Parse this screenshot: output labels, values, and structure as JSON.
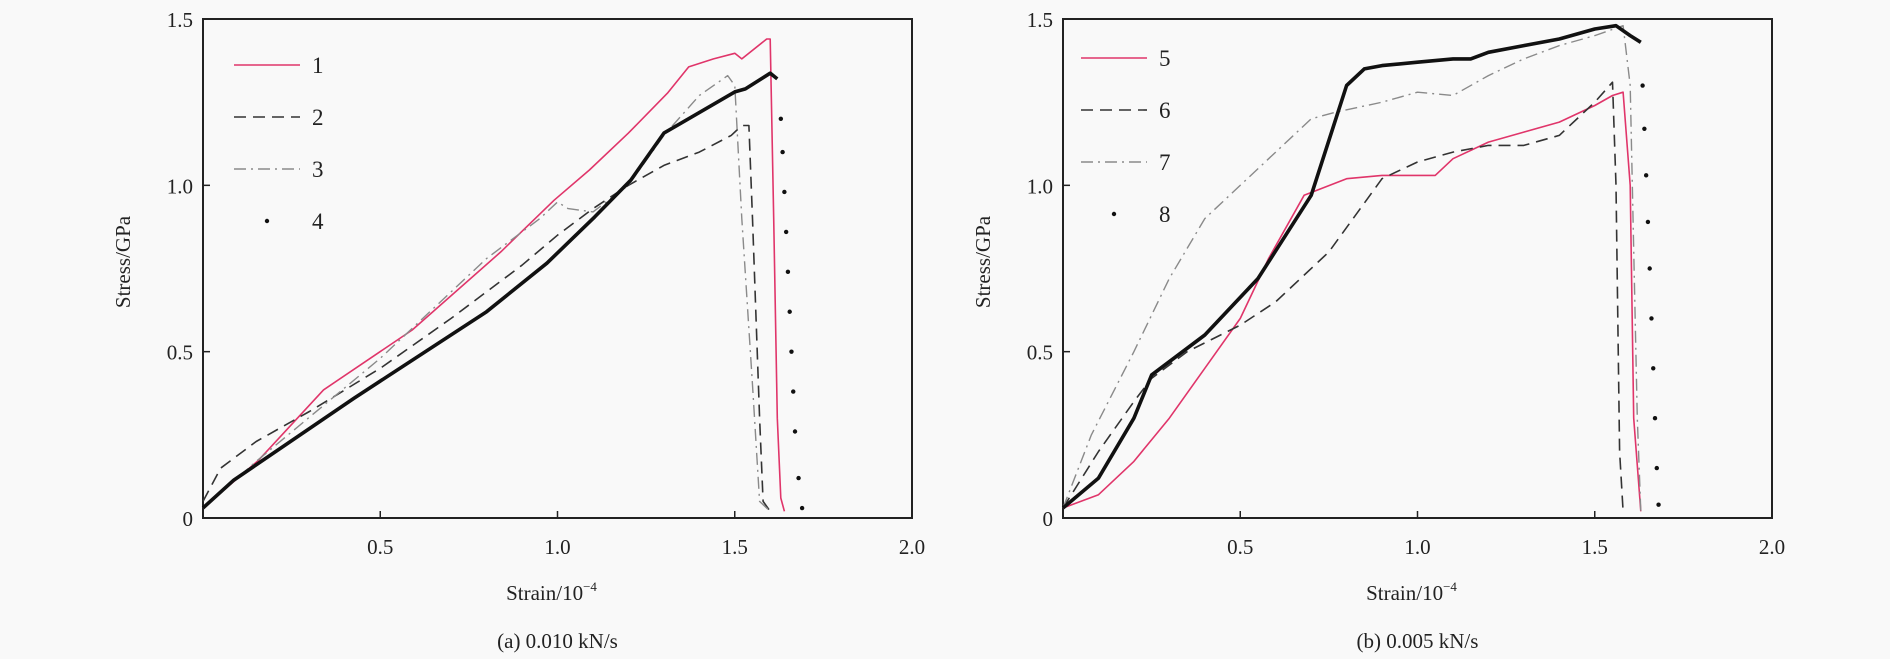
{
  "colors": {
    "pink": "#e0356a",
    "dark": "#333333",
    "gray": "#8a8a8a",
    "black": "#111111",
    "frame": "#222222"
  },
  "chart_data": [
    {
      "type": "line",
      "caption": "(a) 0.010 kN/s",
      "xlabel": "Strain/10",
      "xlabel_sup": "−4",
      "ylabel": "Stress/GPa",
      "xlim": [
        0,
        2.0
      ],
      "ylim": [
        0,
        1.5
      ],
      "xticks": [
        "0.5",
        "1.0",
        "1.5",
        "2.0"
      ],
      "xtick_values": [
        0.5,
        1.0,
        1.5,
        2.0
      ],
      "yticks": [
        "0",
        "0.5",
        "1.0",
        "1.5"
      ],
      "ytick_values": [
        0,
        0.5,
        1.0,
        1.5
      ],
      "grid": false,
      "legend_position": "top-left",
      "series": [
        {
          "name": "1",
          "style": "solid-thin",
          "color": "#e0356a",
          "x": [
            0,
            0.157,
            0.34,
            0.59,
            0.84,
            0.99,
            1.09,
            1.2,
            1.31,
            1.37,
            1.44,
            1.5,
            1.52,
            1.59,
            1.6,
            1.61,
            1.62,
            1.63,
            1.64
          ],
          "y": [
            0.03,
            0.174,
            0.385,
            0.565,
            0.8,
            0.955,
            1.046,
            1.157,
            1.277,
            1.356,
            1.38,
            1.397,
            1.38,
            1.44,
            1.44,
            0.9,
            0.3,
            0.06,
            0.02
          ]
        },
        {
          "name": "2",
          "style": "dashed",
          "color": "#333333",
          "x": [
            0,
            0.05,
            0.15,
            0.3,
            0.5,
            0.7,
            0.9,
            1.0,
            1.1,
            1.2,
            1.3,
            1.4,
            1.49,
            1.52,
            1.54,
            1.55,
            1.57,
            1.58,
            1.6
          ],
          "y": [
            0.05,
            0.15,
            0.23,
            0.32,
            0.45,
            0.6,
            0.76,
            0.85,
            0.93,
            1.0,
            1.06,
            1.1,
            1.15,
            1.18,
            1.18,
            0.9,
            0.3,
            0.05,
            0.02
          ]
        },
        {
          "name": "3",
          "style": "dashdot",
          "color": "#8a8a8a",
          "x": [
            0,
            0.15,
            0.5,
            0.8,
            0.95,
            1.0,
            1.03,
            1.1,
            1.2,
            1.3,
            1.4,
            1.48,
            1.5,
            1.52,
            1.55,
            1.57,
            1.6
          ],
          "y": [
            0.03,
            0.17,
            0.48,
            0.78,
            0.9,
            0.95,
            0.93,
            0.92,
            1.0,
            1.15,
            1.27,
            1.33,
            1.3,
            0.9,
            0.4,
            0.05,
            0.02
          ]
        },
        {
          "name": "4",
          "style": "thick-dotted-tail",
          "color": "#111111",
          "dotted_from_index": 11,
          "x": [
            0,
            0.087,
            0.426,
            0.8,
            0.97,
            1.105,
            1.207,
            1.3,
            1.5,
            1.53,
            1.6,
            1.62,
            1.63,
            1.635,
            1.64,
            1.645,
            1.65,
            1.655,
            1.66,
            1.665,
            1.67,
            1.68,
            1.69
          ],
          "y": [
            0.03,
            0.114,
            0.36,
            0.62,
            0.766,
            0.905,
            1.016,
            1.157,
            1.281,
            1.29,
            1.337,
            1.32,
            1.2,
            1.1,
            0.98,
            0.86,
            0.74,
            0.62,
            0.5,
            0.38,
            0.26,
            0.12,
            0.03
          ]
        }
      ]
    },
    {
      "type": "line",
      "caption": "(b) 0.005 kN/s",
      "xlabel": "Strain/10",
      "xlabel_sup": "−4",
      "ylabel": "Stress/GPa",
      "xlim": [
        0,
        2.0
      ],
      "ylim": [
        0,
        1.5
      ],
      "xticks": [
        "0.5",
        "1.0",
        "1.5",
        "2.0"
      ],
      "xtick_values": [
        0.5,
        1.0,
        1.5,
        2.0
      ],
      "yticks": [
        "0",
        "0.5",
        "1.0",
        "1.5"
      ],
      "ytick_values": [
        0,
        0.5,
        1.0,
        1.5
      ],
      "grid": false,
      "legend_position": "top-left",
      "series": [
        {
          "name": "5",
          "style": "solid-thin",
          "color": "#e0356a",
          "x": [
            0,
            0.1,
            0.2,
            0.3,
            0.4,
            0.5,
            0.58,
            0.68,
            0.8,
            0.9,
            1.0,
            1.05,
            1.1,
            1.2,
            1.3,
            1.4,
            1.5,
            1.55,
            1.58,
            1.6,
            1.61,
            1.63
          ],
          "y": [
            0.03,
            0.07,
            0.17,
            0.3,
            0.45,
            0.6,
            0.78,
            0.97,
            1.02,
            1.03,
            1.03,
            1.03,
            1.08,
            1.13,
            1.16,
            1.19,
            1.24,
            1.27,
            1.28,
            1.0,
            0.3,
            0.02
          ]
        },
        {
          "name": "6",
          "style": "dashed",
          "color": "#333333",
          "x": [
            0,
            0.1,
            0.2,
            0.25,
            0.35,
            0.5,
            0.6,
            0.75,
            0.9,
            1.0,
            1.1,
            1.2,
            1.3,
            1.4,
            1.5,
            1.55,
            1.56,
            1.57,
            1.58
          ],
          "y": [
            0.03,
            0.2,
            0.35,
            0.42,
            0.5,
            0.58,
            0.65,
            0.8,
            1.02,
            1.07,
            1.1,
            1.12,
            1.12,
            1.15,
            1.25,
            1.31,
            1.0,
            0.2,
            0.02
          ]
        },
        {
          "name": "7",
          "style": "dashdot",
          "color": "#8a8a8a",
          "x": [
            0,
            0.08,
            0.2,
            0.3,
            0.4,
            0.5,
            0.6,
            0.7,
            0.77,
            0.9,
            1.0,
            1.1,
            1.2,
            1.3,
            1.4,
            1.5,
            1.58,
            1.6,
            1.62,
            1.63
          ],
          "y": [
            0.03,
            0.25,
            0.5,
            0.72,
            0.9,
            1.0,
            1.1,
            1.2,
            1.22,
            1.25,
            1.28,
            1.27,
            1.33,
            1.38,
            1.42,
            1.45,
            1.48,
            1.3,
            0.3,
            0.02
          ]
        },
        {
          "name": "8",
          "style": "thick-dotted-tail",
          "color": "#111111",
          "dotted_from_index": 19,
          "x": [
            0,
            0.1,
            0.2,
            0.25,
            0.4,
            0.55,
            0.7,
            0.8,
            0.85,
            0.9,
            1.0,
            1.1,
            1.15,
            1.2,
            1.3,
            1.4,
            1.5,
            1.56,
            1.6,
            1.63,
            1.635,
            1.64,
            1.645,
            1.65,
            1.655,
            1.66,
            1.665,
            1.67,
            1.675,
            1.68
          ],
          "y": [
            0.03,
            0.12,
            0.3,
            0.43,
            0.55,
            0.72,
            0.97,
            1.3,
            1.35,
            1.36,
            1.37,
            1.38,
            1.38,
            1.4,
            1.42,
            1.44,
            1.47,
            1.48,
            1.45,
            1.43,
            1.3,
            1.17,
            1.03,
            0.89,
            0.75,
            0.6,
            0.45,
            0.3,
            0.15,
            0.04
          ]
        }
      ]
    }
  ]
}
